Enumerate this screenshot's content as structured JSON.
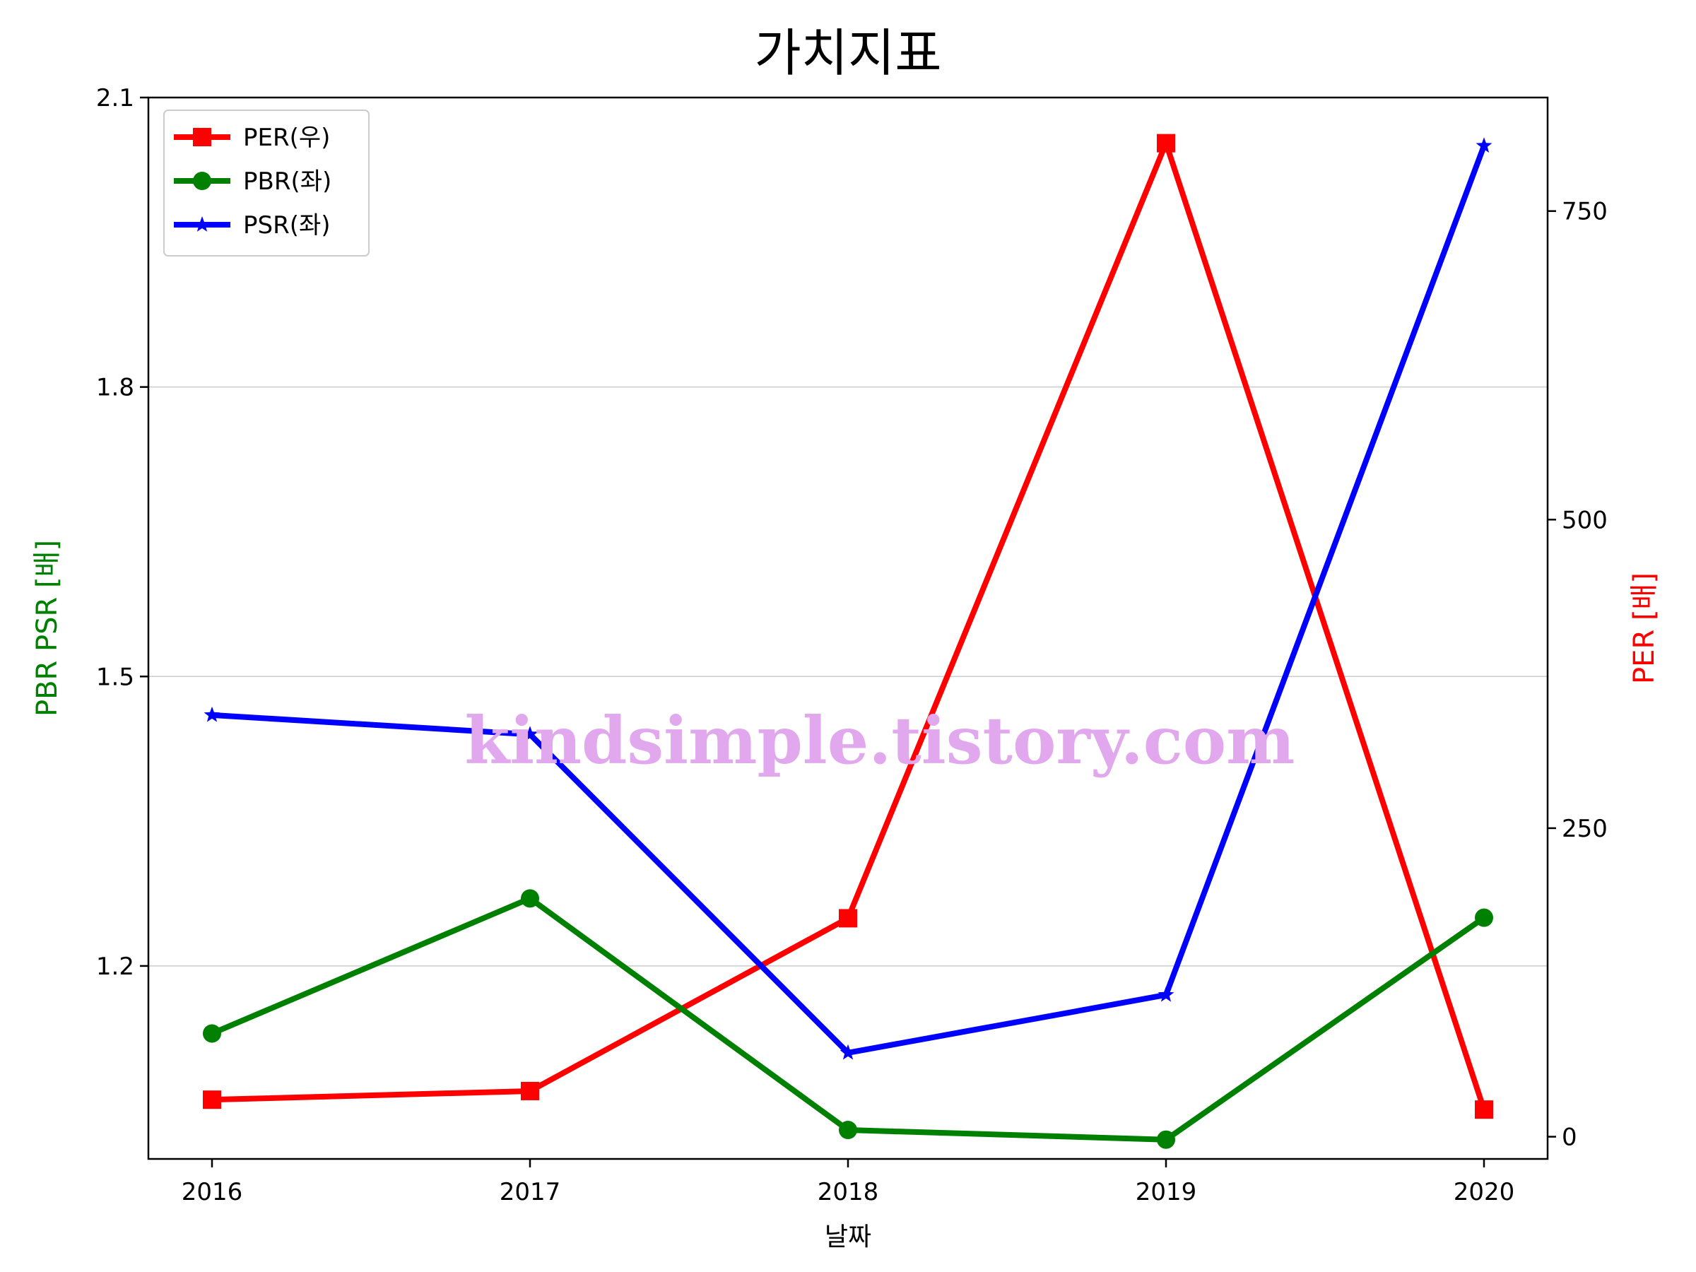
{
  "chart_data": {
    "type": "line",
    "title": "가치지표",
    "xlabel": "날짜",
    "ylabel_left": "PBR PSR [배]",
    "ylabel_right": "PER [배]",
    "ylabel_left_color": "#008000",
    "ylabel_right_color": "#ff0000",
    "x": [
      "2016",
      "2017",
      "2018",
      "2019",
      "2020"
    ],
    "y_left": {
      "ticks": [
        "1.2",
        "1.5",
        "1.8",
        "2.1"
      ],
      "lim": [
        1.0,
        2.1
      ],
      "grid": true
    },
    "y_right": {
      "ticks": [
        "0",
        "250",
        "500",
        "750"
      ],
      "lim": [
        -18,
        842
      ]
    },
    "series": [
      {
        "name": "PER(우)",
        "axis": "right",
        "color": "#ff0000",
        "marker": "square",
        "values": [
          30,
          37,
          177,
          805,
          22
        ]
      },
      {
        "name": "PBR(좌)",
        "axis": "left",
        "color": "#008000",
        "marker": "circle",
        "values": [
          1.13,
          1.27,
          1.03,
          1.02,
          1.25
        ]
      },
      {
        "name": "PSR(좌)",
        "axis": "left",
        "color": "#0000ff",
        "marker": "star",
        "values": [
          1.46,
          1.44,
          1.11,
          1.17,
          2.05
        ]
      }
    ],
    "legend_position": "top-left",
    "watermark": "kindsimple.tistory.com"
  }
}
